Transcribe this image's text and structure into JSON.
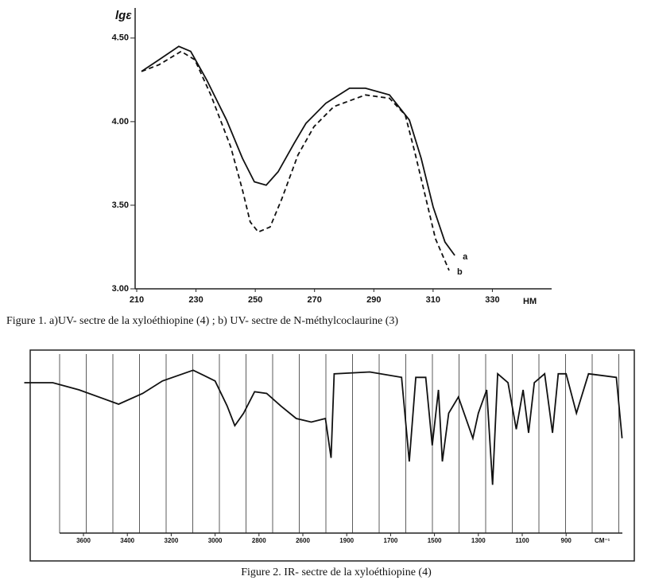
{
  "chart_data": [
    {
      "type": "line",
      "caption": "Figure 1. a)UV- sectre de la xyloéthiopine (4) ; b) UV- sectre de  N-méthylcoclaurine (3)",
      "y_label": "lgε",
      "x_label": "HM",
      "xlim": [
        210,
        350
      ],
      "ylim": [
        3.0,
        4.68
      ],
      "xticks": [
        210,
        230,
        250,
        270,
        290,
        310,
        330
      ],
      "yticks": [
        {
          "value": 3.0,
          "label": "3.00"
        },
        {
          "value": 3.5,
          "label": "3.50"
        },
        {
          "value": 4.0,
          "label": "4.00"
        },
        {
          "value": 4.5,
          "label": "4.50"
        }
      ],
      "series": [
        {
          "name": "a",
          "color": "#111",
          "dashed": false,
          "x": [
            211.6,
            217.5,
            224.2,
            228.2,
            233.6,
            240.3,
            245.7,
            249.7,
            253.7,
            257.7,
            263.1,
            267.1,
            273.8,
            281.8,
            287.2,
            295.3,
            302,
            306,
            310,
            314,
            317.3
          ],
          "values": [
            4.3,
            4.37,
            4.45,
            4.42,
            4.25,
            4.01,
            3.78,
            3.64,
            3.62,
            3.7,
            3.87,
            3.99,
            4.11,
            4.2,
            4.2,
            4.16,
            4.01,
            3.78,
            3.49,
            3.28,
            3.2
          ]
        },
        {
          "name": "b",
          "color": "#111",
          "dashed": true,
          "x": [
            211.6,
            217.5,
            225,
            229.6,
            235,
            241.7,
            245.7,
            248.3,
            251,
            255,
            259,
            264.4,
            269.8,
            276.5,
            287.2,
            295.3,
            300.6,
            303.8,
            307.3,
            310.8,
            315.4
          ],
          "values": [
            4.3,
            4.34,
            4.42,
            4.37,
            4.16,
            3.85,
            3.59,
            3.4,
            3.34,
            3.37,
            3.54,
            3.8,
            3.97,
            4.09,
            4.16,
            4.14,
            4.04,
            3.82,
            3.56,
            3.3,
            3.11
          ]
        }
      ]
    },
    {
      "type": "line",
      "caption": "Figure 2. IR- sectre de la xyloéthiopine (4)",
      "x_label": "CM⁻¹",
      "x_scale": "by-ticks",
      "xlim": [
        3870,
        640
      ],
      "ylim": [
        0,
        100
      ],
      "xticks": [
        3600,
        3400,
        3200,
        3000,
        2800,
        2600,
        1900,
        1700,
        1500,
        1300,
        1100,
        900
      ],
      "series": [
        {
          "name": "xyloéthiopine",
          "color": "#111",
          "dashed": false,
          "x": [
            3870,
            3740,
            3620,
            3440,
            3330,
            3240,
            3100,
            3000,
            2945,
            2910,
            2870,
            2820,
            2765,
            2700,
            2630,
            2465,
            2240,
            2150,
            2100,
            1795,
            1650,
            1615,
            1585,
            1540,
            1510,
            1482,
            1464,
            1435,
            1391,
            1325,
            1300,
            1262,
            1235,
            1212,
            1165,
            1127,
            1096,
            1071,
            1045,
            998,
            962,
            936,
            900,
            853,
            798,
            671,
            645
          ],
          "values": [
            84,
            84,
            80,
            72,
            78,
            85,
            91,
            85,
            71,
            60,
            67,
            79,
            78,
            71,
            64,
            62,
            64,
            42,
            89,
            90,
            87,
            40,
            87,
            87,
            49,
            80,
            40,
            67,
            76,
            53,
            67,
            80,
            27,
            89,
            84,
            58,
            80,
            56,
            84,
            89,
            56,
            89,
            89,
            67,
            89,
            87,
            53
          ]
        }
      ]
    }
  ]
}
